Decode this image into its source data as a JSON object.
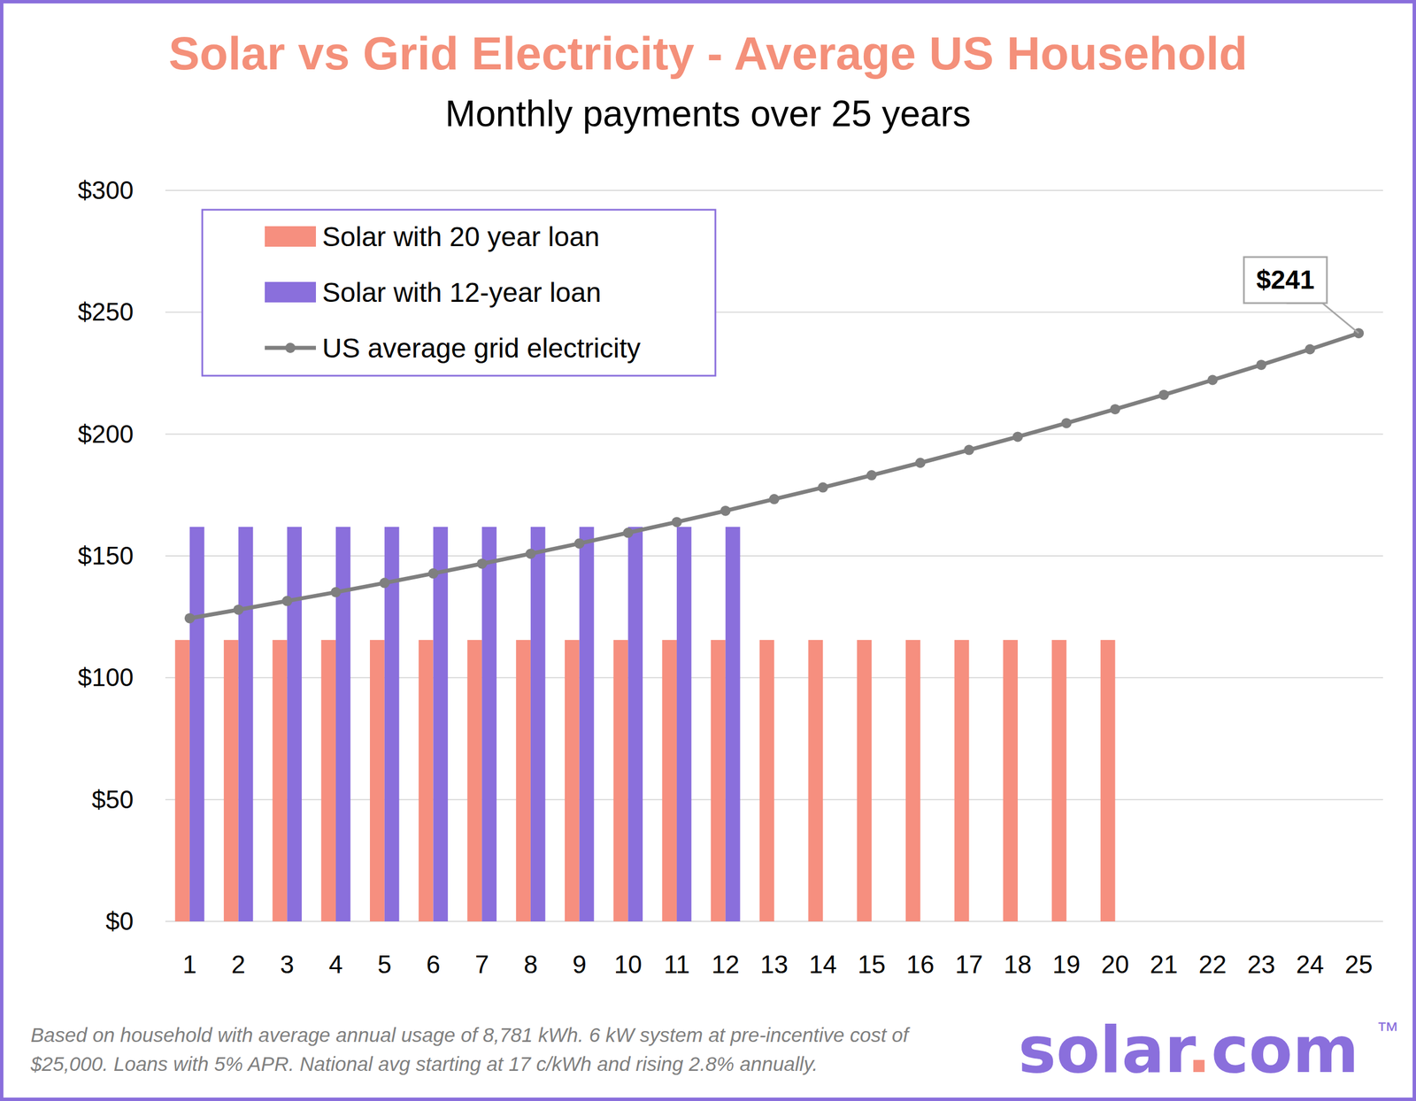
{
  "chart_data": {
    "type": "bar",
    "title": "Solar vs Grid Electricity - Average US Household",
    "subtitle": "Monthly payments over 25 years",
    "categories": [
      "1",
      "2",
      "3",
      "4",
      "5",
      "6",
      "7",
      "8",
      "9",
      "10",
      "11",
      "12",
      "13",
      "14",
      "15",
      "16",
      "17",
      "18",
      "19",
      "20",
      "21",
      "22",
      "23",
      "24",
      "25"
    ],
    "series": [
      {
        "name": "Solar with 20 year loan",
        "type": "bar",
        "color": "#f68f7f",
        "values": [
          115.5,
          115.5,
          115.5,
          115.5,
          115.5,
          115.5,
          115.5,
          115.5,
          115.5,
          115.5,
          115.5,
          115.5,
          115.5,
          115.5,
          115.5,
          115.5,
          115.5,
          115.5,
          115.5,
          115.5,
          null,
          null,
          null,
          null,
          null
        ]
      },
      {
        "name": "Solar with 12-year loan",
        "type": "bar",
        "color": "#8a6fdc",
        "values": [
          161.9,
          161.9,
          161.9,
          161.9,
          161.9,
          161.9,
          161.9,
          161.9,
          161.9,
          161.9,
          161.9,
          161.9,
          null,
          null,
          null,
          null,
          null,
          null,
          null,
          null,
          null,
          null,
          null,
          null,
          null
        ]
      },
      {
        "name": "US average grid electricity",
        "type": "line",
        "color": "#7f7f7f",
        "marker": "circle",
        "line_style": "solid",
        "values": [
          124.4,
          127.9,
          131.5,
          135.1,
          138.9,
          142.8,
          146.8,
          150.9,
          155.1,
          159.5,
          163.9,
          168.5,
          173.3,
          178.1,
          183.1,
          188.2,
          193.5,
          198.9,
          204.5,
          210.2,
          216.1,
          222.2,
          228.4,
          234.8,
          241.4
        ]
      }
    ],
    "ylim": [
      0,
      300
    ],
    "yticks": [
      {
        "value": 0,
        "label": "$0"
      },
      {
        "value": 50,
        "label": "$50"
      },
      {
        "value": 100,
        "label": "$100"
      },
      {
        "value": 150,
        "label": "$150"
      },
      {
        "value": 200,
        "label": "$200"
      },
      {
        "value": 250,
        "label": "$250"
      },
      {
        "value": 300,
        "label": "$300"
      }
    ],
    "grid": true,
    "legend": "top-left",
    "annotations": [
      {
        "label": "$241",
        "x": "25",
        "y": 241.4
      }
    ],
    "footnote": [
      "Based on household with average annual usage of 8,781 kWh.  6 kW system at pre-incentive cost of",
      "$25,000. Loans with 5% APR. National avg starting at 17 c/kWh and rising 2.8% annually."
    ],
    "logo": "solar.com",
    "logo_mark": "™"
  }
}
